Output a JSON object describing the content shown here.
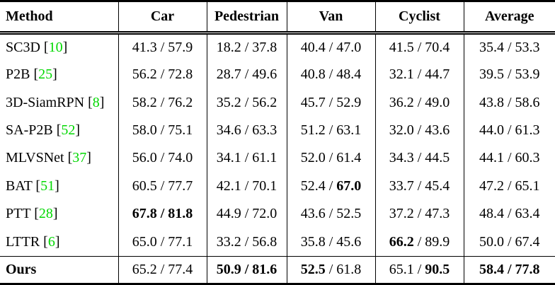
{
  "table": {
    "columns": [
      "Method",
      "Car",
      "Pedestrian",
      "Van",
      "Cyclist",
      "Average"
    ],
    "separator": " / ",
    "citation_color": "#00d800",
    "rows": [
      {
        "method": "SC3D",
        "cite": "10",
        "method_bold": false,
        "last": false,
        "cells": [
          {
            "s": "41.3",
            "p": "57.9",
            "bold": "none"
          },
          {
            "s": "18.2",
            "p": "37.8",
            "bold": "none"
          },
          {
            "s": "40.4",
            "p": "47.0",
            "bold": "none"
          },
          {
            "s": "41.5",
            "p": "70.4",
            "bold": "none"
          },
          {
            "s": "35.4",
            "p": "53.3",
            "bold": "none"
          }
        ]
      },
      {
        "method": "P2B",
        "cite": "25",
        "method_bold": false,
        "last": false,
        "cells": [
          {
            "s": "56.2",
            "p": "72.8",
            "bold": "none"
          },
          {
            "s": "28.7",
            "p": "49.6",
            "bold": "none"
          },
          {
            "s": "40.8",
            "p": "48.4",
            "bold": "none"
          },
          {
            "s": "32.1",
            "p": "44.7",
            "bold": "none"
          },
          {
            "s": "39.5",
            "p": "53.9",
            "bold": "none"
          }
        ]
      },
      {
        "method": "3D-SiamRPN",
        "cite": "8",
        "method_bold": false,
        "last": false,
        "cells": [
          {
            "s": "58.2",
            "p": "76.2",
            "bold": "none"
          },
          {
            "s": "35.2",
            "p": "56.2",
            "bold": "none"
          },
          {
            "s": "45.7",
            "p": "52.9",
            "bold": "none"
          },
          {
            "s": "36.2",
            "p": "49.0",
            "bold": "none"
          },
          {
            "s": "43.8",
            "p": "58.6",
            "bold": "none"
          }
        ]
      },
      {
        "method": "SA-P2B",
        "cite": "52",
        "method_bold": false,
        "last": false,
        "cells": [
          {
            "s": "58.0",
            "p": "75.1",
            "bold": "none"
          },
          {
            "s": "34.6",
            "p": "63.3",
            "bold": "none"
          },
          {
            "s": "51.2",
            "p": "63.1",
            "bold": "none"
          },
          {
            "s": "32.0",
            "p": "43.6",
            "bold": "none"
          },
          {
            "s": "44.0",
            "p": "61.3",
            "bold": "none"
          }
        ]
      },
      {
        "method": "MLVSNet",
        "cite": "37",
        "method_bold": false,
        "last": false,
        "cells": [
          {
            "s": "56.0",
            "p": "74.0",
            "bold": "none"
          },
          {
            "s": "34.1",
            "p": "61.1",
            "bold": "none"
          },
          {
            "s": "52.0",
            "p": "61.4",
            "bold": "none"
          },
          {
            "s": "34.3",
            "p": "44.5",
            "bold": "none"
          },
          {
            "s": "44.1",
            "p": "60.3",
            "bold": "none"
          }
        ]
      },
      {
        "method": "BAT",
        "cite": "51",
        "method_bold": false,
        "last": false,
        "cells": [
          {
            "s": "60.5",
            "p": "77.7",
            "bold": "none"
          },
          {
            "s": "42.1",
            "p": "70.1",
            "bold": "none"
          },
          {
            "s": "52.4",
            "p": "67.0",
            "bold": "p"
          },
          {
            "s": "33.7",
            "p": "45.4",
            "bold": "none"
          },
          {
            "s": "47.2",
            "p": "65.1",
            "bold": "none"
          }
        ]
      },
      {
        "method": "PTT",
        "cite": "28",
        "method_bold": false,
        "last": false,
        "cells": [
          {
            "s": "67.8",
            "p": "81.8",
            "bold": "both"
          },
          {
            "s": "44.9",
            "p": "72.0",
            "bold": "none"
          },
          {
            "s": "43.6",
            "p": "52.5",
            "bold": "none"
          },
          {
            "s": "37.2",
            "p": "47.3",
            "bold": "none"
          },
          {
            "s": "48.4",
            "p": "63.4",
            "bold": "none"
          }
        ]
      },
      {
        "method": "LTTR",
        "cite": "6",
        "method_bold": false,
        "last": false,
        "cells": [
          {
            "s": "65.0",
            "p": "77.1",
            "bold": "none"
          },
          {
            "s": "33.2",
            "p": "56.8",
            "bold": "none"
          },
          {
            "s": "35.8",
            "p": "45.6",
            "bold": "none"
          },
          {
            "s": "66.2",
            "p": "89.9",
            "bold": "s"
          },
          {
            "s": "50.0",
            "p": "67.4",
            "bold": "none"
          }
        ]
      },
      {
        "method": "Ours",
        "cite": null,
        "method_bold": true,
        "last": true,
        "cells": [
          {
            "s": "65.2",
            "p": "77.4",
            "bold": "none"
          },
          {
            "s": "50.9",
            "p": "81.6",
            "bold": "both"
          },
          {
            "s": "52.5",
            "p": "61.8",
            "bold": "s"
          },
          {
            "s": "65.1",
            "p": "90.5",
            "bold": "p"
          },
          {
            "s": "58.4",
            "p": "77.8",
            "bold": "both"
          }
        ]
      }
    ]
  }
}
